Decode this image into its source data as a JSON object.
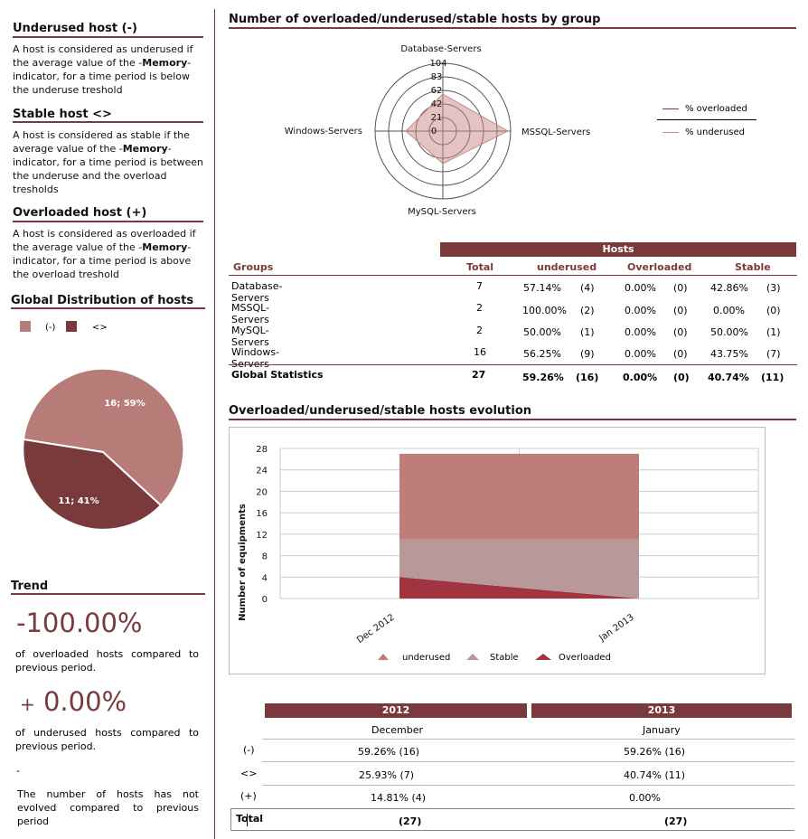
{
  "left": {
    "underused": {
      "title": "Underused host (-)",
      "text_pre": "A host is considered as underused if the average value of the -",
      "indicator": "Memory",
      "text_post": "- indicator, for a time period is below the underuse treshold"
    },
    "stable": {
      "title": "Stable host <>",
      "text_pre": "A host is considered as stable if the average value of the -",
      "indicator": "Memory",
      "text_post": "- indicator, for a time period is between the underuse and the overload tresholds"
    },
    "overloaded": {
      "title": "Overloaded host (+)",
      "text_pre": "A host is considered as overloaded if the average value of the -",
      "indicator": "Memory",
      "text_post": "- indicator, for a time period is above the overload treshold"
    },
    "distribution": {
      "title": "Global Distribution of hosts",
      "legend": [
        {
          "label": "(-)",
          "color": "#b87c78"
        },
        {
          "label": "<>",
          "color": "#7a3a3c"
        }
      ],
      "slices": [
        {
          "label": "16; 59%",
          "value": 16,
          "color": "#b87c78"
        },
        {
          "label": "11; 41%",
          "value": 11,
          "color": "#7a3a3c"
        }
      ]
    },
    "trend": {
      "title": "Trend",
      "overloaded_value": "-100.00%",
      "overloaded_text": "of overloaded hosts compared to previous period.",
      "underused_sign": "+",
      "underused_value": "0.00%",
      "underused_text": "of underused hosts compared to previous period.",
      "dash": "-",
      "hosts_text": "The number of hosts has not evolved compared to previous period"
    }
  },
  "radar": {
    "title": "Number of overloaded/underused/stable hosts by group",
    "axes": [
      "Database-Servers",
      "MSSQL-Servers",
      "MySQL-Servers",
      "Windows-Servers"
    ],
    "ticks": [
      "104",
      "83",
      "62",
      "42",
      "21",
      "0"
    ],
    "legend": [
      {
        "label": "% overloaded",
        "color": "#7a3a3c"
      },
      {
        "label": "% underused",
        "color": "#c78a88"
      }
    ],
    "underused_values": [
      57.14,
      100.0,
      50.0,
      56.25
    ],
    "overloaded_values": [
      0,
      0,
      0,
      0
    ],
    "max": 104
  },
  "table": {
    "super_header": "Hosts",
    "headers": [
      "Groups",
      "Total",
      "underused",
      "Overloaded",
      "Stable"
    ],
    "rows": [
      {
        "group": "Database-Servers",
        "total": "7",
        "u_pct": "57.14%",
        "u_n": "(4)",
        "o_pct": "0.00%",
        "o_n": "(0)",
        "s_pct": "42.86%",
        "s_n": "(3)"
      },
      {
        "group": "MSSQL-Servers",
        "total": "2",
        "u_pct": "100.00%",
        "u_n": "(2)",
        "o_pct": "0.00%",
        "o_n": "(0)",
        "s_pct": "0.00%",
        "s_n": "(0)"
      },
      {
        "group": "MySQL-Servers",
        "total": "2",
        "u_pct": "50.00%",
        "u_n": "(1)",
        "o_pct": "0.00%",
        "o_n": "(0)",
        "s_pct": "50.00%",
        "s_n": "(1)"
      },
      {
        "group": "Windows-Servers",
        "total": "16",
        "u_pct": "56.25%",
        "u_n": "(9)",
        "o_pct": "0.00%",
        "o_n": "(0)",
        "s_pct": "43.75%",
        "s_n": "(7)"
      }
    ],
    "global": {
      "group": "Global Statistics",
      "total": "27",
      "u_pct": "59.26%",
      "u_n": "(16)",
      "o_pct": "0.00%",
      "o_n": "(0)",
      "s_pct": "40.74%",
      "s_n": "(11)"
    }
  },
  "chart_data": {
    "type": "area",
    "title": "Overloaded/underused/stable hosts evolution",
    "x": [
      "Dec 2012",
      "Jan 2013"
    ],
    "ylabel": "Number of equipments",
    "ylim": [
      0,
      28
    ],
    "yticks": [
      "0",
      "4",
      "8",
      "12",
      "16",
      "20",
      "24",
      "28"
    ],
    "stacked": true,
    "series": [
      {
        "name": "Overloaded",
        "values": [
          4,
          0
        ],
        "color": "#a03440"
      },
      {
        "name": "Stable",
        "values": [
          7,
          11
        ],
        "color": "#b89898"
      },
      {
        "name": "underused",
        "values": [
          16,
          16
        ],
        "color": "#bd7d79"
      }
    ],
    "legend": [
      "underused",
      "Stable",
      "Overloaded"
    ]
  },
  "period_table": {
    "years": [
      "2012",
      "2013"
    ],
    "months": [
      "December",
      "January"
    ],
    "rows": [
      {
        "label": "(-)",
        "a": "59.26% (16)",
        "b": "59.26% (16)"
      },
      {
        "label": "<>",
        "a": "25.93% (7)",
        "b": "40.74% (11)"
      },
      {
        "label": "(+)",
        "a": "14.81% (4)",
        "b": "0.00%"
      }
    ],
    "total": {
      "label": "Total",
      "a": "(27)",
      "b": "(27)"
    }
  }
}
